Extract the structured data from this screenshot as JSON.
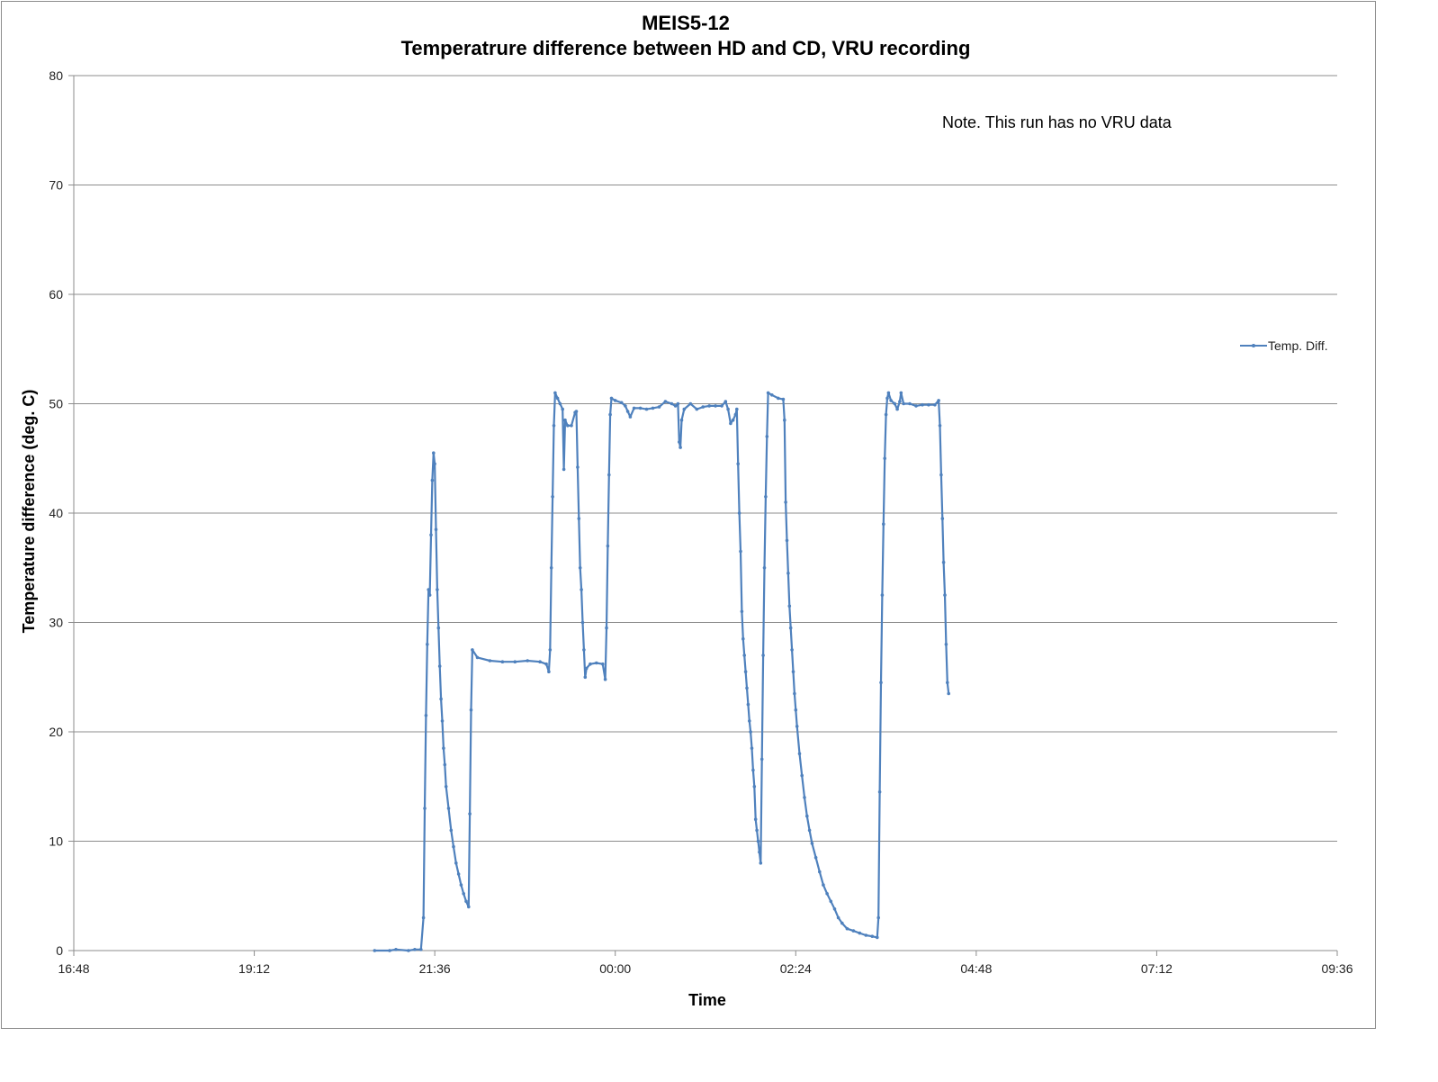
{
  "chart_data": {
    "type": "line",
    "title": "MEIS5-12",
    "subtitle": "Temperatrure difference between HD and CD, VRU recording",
    "xlabel": "Time",
    "ylabel": "Temperature difference (deg. C)",
    "annotation": "Note. This run has no VRU data",
    "xlim": [
      "16:48",
      "09:36"
    ],
    "ylim": [
      0,
      80
    ],
    "x_ticks": [
      "16:48",
      "19:12",
      "21:36",
      "00:00",
      "02:24",
      "04:48",
      "07:12",
      "09:36"
    ],
    "y_ticks": [
      "0",
      "10",
      "20",
      "30",
      "40",
      "50",
      "60",
      "70",
      "80"
    ],
    "grid": true,
    "legend_position": "right",
    "series": [
      {
        "name": "Temp. Diff.",
        "color": "#4f81bd",
        "points": [
          [
            "20:48",
            0
          ],
          [
            "21:00",
            0
          ],
          [
            "21:05",
            0.1
          ],
          [
            "21:15",
            0
          ],
          [
            "21:20",
            0.1
          ],
          [
            "21:25",
            0.1
          ],
          [
            "21:27",
            3
          ],
          [
            "21:28",
            13
          ],
          [
            "21:29",
            21.5
          ],
          [
            "21:30",
            28
          ],
          [
            "21:31",
            33
          ],
          [
            "21:32",
            32.5
          ],
          [
            "21:33",
            38
          ],
          [
            "21:34",
            43
          ],
          [
            "21:35",
            45.5
          ],
          [
            "21:36",
            44.5
          ],
          [
            "21:37",
            38.5
          ],
          [
            "21:38",
            33
          ],
          [
            "21:39",
            29.5
          ],
          [
            "21:40",
            26
          ],
          [
            "21:41",
            23
          ],
          [
            "21:42",
            21
          ],
          [
            "21:43",
            18.5
          ],
          [
            "21:44",
            17
          ],
          [
            "21:45",
            15
          ],
          [
            "21:47",
            13
          ],
          [
            "21:49",
            11
          ],
          [
            "21:51",
            9.5
          ],
          [
            "21:53",
            8
          ],
          [
            "21:55",
            7
          ],
          [
            "21:57",
            6
          ],
          [
            "21:59",
            5.2
          ],
          [
            "22:01",
            4.5
          ],
          [
            "22:03",
            4
          ],
          [
            "22:04",
            12.5
          ],
          [
            "22:05",
            22
          ],
          [
            "22:06",
            27.5
          ],
          [
            "22:10",
            26.8
          ],
          [
            "22:20",
            26.5
          ],
          [
            "22:30",
            26.4
          ],
          [
            "22:40",
            26.4
          ],
          [
            "22:50",
            26.5
          ],
          [
            "23:00",
            26.4
          ],
          [
            "23:05",
            26.2
          ],
          [
            "23:07",
            25.5
          ],
          [
            "23:08",
            27.5
          ],
          [
            "23:09",
            35
          ],
          [
            "23:10",
            41.5
          ],
          [
            "23:11",
            48
          ],
          [
            "23:12",
            51
          ],
          [
            "23:14",
            50.5
          ],
          [
            "23:16",
            50
          ],
          [
            "23:18",
            49.5
          ],
          [
            "23:19",
            44
          ],
          [
            "23:20",
            48.5
          ],
          [
            "23:22",
            48
          ],
          [
            "23:25",
            48
          ],
          [
            "23:28",
            49.2
          ],
          [
            "23:29",
            49.3
          ],
          [
            "23:30",
            44.2
          ],
          [
            "23:31",
            39.5
          ],
          [
            "23:32",
            35
          ],
          [
            "23:33",
            33
          ],
          [
            "23:34",
            30
          ],
          [
            "23:35",
            27.5
          ],
          [
            "23:36",
            25
          ],
          [
            "23:37",
            25.8
          ],
          [
            "23:40",
            26.2
          ],
          [
            "23:45",
            26.3
          ],
          [
            "23:50",
            26.2
          ],
          [
            "23:52",
            24.8
          ],
          [
            "23:53",
            29.5
          ],
          [
            "23:54",
            37
          ],
          [
            "23:55",
            43.5
          ],
          [
            "23:56",
            49
          ],
          [
            "23:57",
            50.5
          ],
          [
            "00:00",
            50.3
          ],
          [
            "00:05",
            50.1
          ],
          [
            "00:08",
            49.8
          ],
          [
            "00:10",
            49.3
          ],
          [
            "00:12",
            48.8
          ],
          [
            "00:15",
            49.6
          ],
          [
            "00:20",
            49.6
          ],
          [
            "00:25",
            49.5
          ],
          [
            "00:30",
            49.6
          ],
          [
            "00:35",
            49.7
          ],
          [
            "00:40",
            50.2
          ],
          [
            "00:45",
            50
          ],
          [
            "00:48",
            49.8
          ],
          [
            "00:50",
            50
          ],
          [
            "00:51",
            46.5
          ],
          [
            "00:52",
            46
          ],
          [
            "00:53",
            48.5
          ],
          [
            "00:55",
            49.5
          ],
          [
            "01:00",
            50
          ],
          [
            "01:05",
            49.5
          ],
          [
            "01:10",
            49.7
          ],
          [
            "01:15",
            49.8
          ],
          [
            "01:20",
            49.8
          ],
          [
            "01:25",
            49.8
          ],
          [
            "01:28",
            50.2
          ],
          [
            "01:30",
            49.5
          ],
          [
            "01:32",
            48.2
          ],
          [
            "01:34",
            48.5
          ],
          [
            "01:36",
            49
          ],
          [
            "01:37",
            49.5
          ],
          [
            "01:38",
            44.5
          ],
          [
            "01:39",
            40
          ],
          [
            "01:40",
            36.5
          ],
          [
            "01:41",
            31
          ],
          [
            "01:42",
            28.5
          ],
          [
            "01:43",
            27
          ],
          [
            "01:44",
            25.5
          ],
          [
            "01:45",
            24
          ],
          [
            "01:46",
            22.5
          ],
          [
            "01:47",
            21
          ],
          [
            "01:48",
            20
          ],
          [
            "01:49",
            18.5
          ],
          [
            "01:50",
            16.5
          ],
          [
            "01:51",
            15
          ],
          [
            "01:52",
            12
          ],
          [
            "01:53",
            11
          ],
          [
            "01:54",
            10
          ],
          [
            "01:55",
            9
          ],
          [
            "01:56",
            8
          ],
          [
            "01:57",
            17.5
          ],
          [
            "01:58",
            27
          ],
          [
            "01:59",
            35
          ],
          [
            "02:00",
            41.5
          ],
          [
            "02:01",
            47
          ],
          [
            "02:02",
            51
          ],
          [
            "02:05",
            50.8
          ],
          [
            "02:10",
            50.5
          ],
          [
            "02:14",
            50.4
          ],
          [
            "02:15",
            48.5
          ],
          [
            "02:16",
            41
          ],
          [
            "02:17",
            37.5
          ],
          [
            "02:18",
            34.5
          ],
          [
            "02:19",
            31.5
          ],
          [
            "02:20",
            29.5
          ],
          [
            "02:21",
            27.5
          ],
          [
            "02:22",
            25.5
          ],
          [
            "02:23",
            23.5
          ],
          [
            "02:24",
            22
          ],
          [
            "02:25",
            20.5
          ],
          [
            "02:27",
            18
          ],
          [
            "02:29",
            16
          ],
          [
            "02:31",
            14
          ],
          [
            "02:33",
            12.3
          ],
          [
            "02:35",
            11
          ],
          [
            "02:37",
            9.8
          ],
          [
            "02:40",
            8.5
          ],
          [
            "02:43",
            7.2
          ],
          [
            "02:46",
            6
          ],
          [
            "02:49",
            5.2
          ],
          [
            "02:52",
            4.5
          ],
          [
            "02:55",
            3.8
          ],
          [
            "02:58",
            3
          ],
          [
            "03:01",
            2.5
          ],
          [
            "03:05",
            2
          ],
          [
            "03:10",
            1.8
          ],
          [
            "03:15",
            1.6
          ],
          [
            "03:20",
            1.4
          ],
          [
            "03:25",
            1.3
          ],
          [
            "03:29",
            1.2
          ],
          [
            "03:30",
            3
          ],
          [
            "03:31",
            14.5
          ],
          [
            "03:32",
            24.5
          ],
          [
            "03:33",
            32.5
          ],
          [
            "03:34",
            39
          ],
          [
            "03:35",
            45
          ],
          [
            "03:36",
            49
          ],
          [
            "03:37",
            50.5
          ],
          [
            "03:38",
            51
          ],
          [
            "03:40",
            50.3
          ],
          [
            "03:43",
            50
          ],
          [
            "03:45",
            49.5
          ],
          [
            "03:47",
            50.2
          ],
          [
            "03:48",
            51
          ],
          [
            "03:50",
            50
          ],
          [
            "03:55",
            50
          ],
          [
            "04:00",
            49.8
          ],
          [
            "04:05",
            49.9
          ],
          [
            "04:10",
            49.9
          ],
          [
            "04:15",
            49.9
          ],
          [
            "04:18",
            50.3
          ],
          [
            "04:19",
            48
          ],
          [
            "04:20",
            43.5
          ],
          [
            "04:21",
            39.5
          ],
          [
            "04:22",
            35.5
          ],
          [
            "04:23",
            32.5
          ],
          [
            "04:24",
            28
          ],
          [
            "04:25",
            24.5
          ],
          [
            "04:26",
            23.5
          ]
        ]
      }
    ]
  }
}
